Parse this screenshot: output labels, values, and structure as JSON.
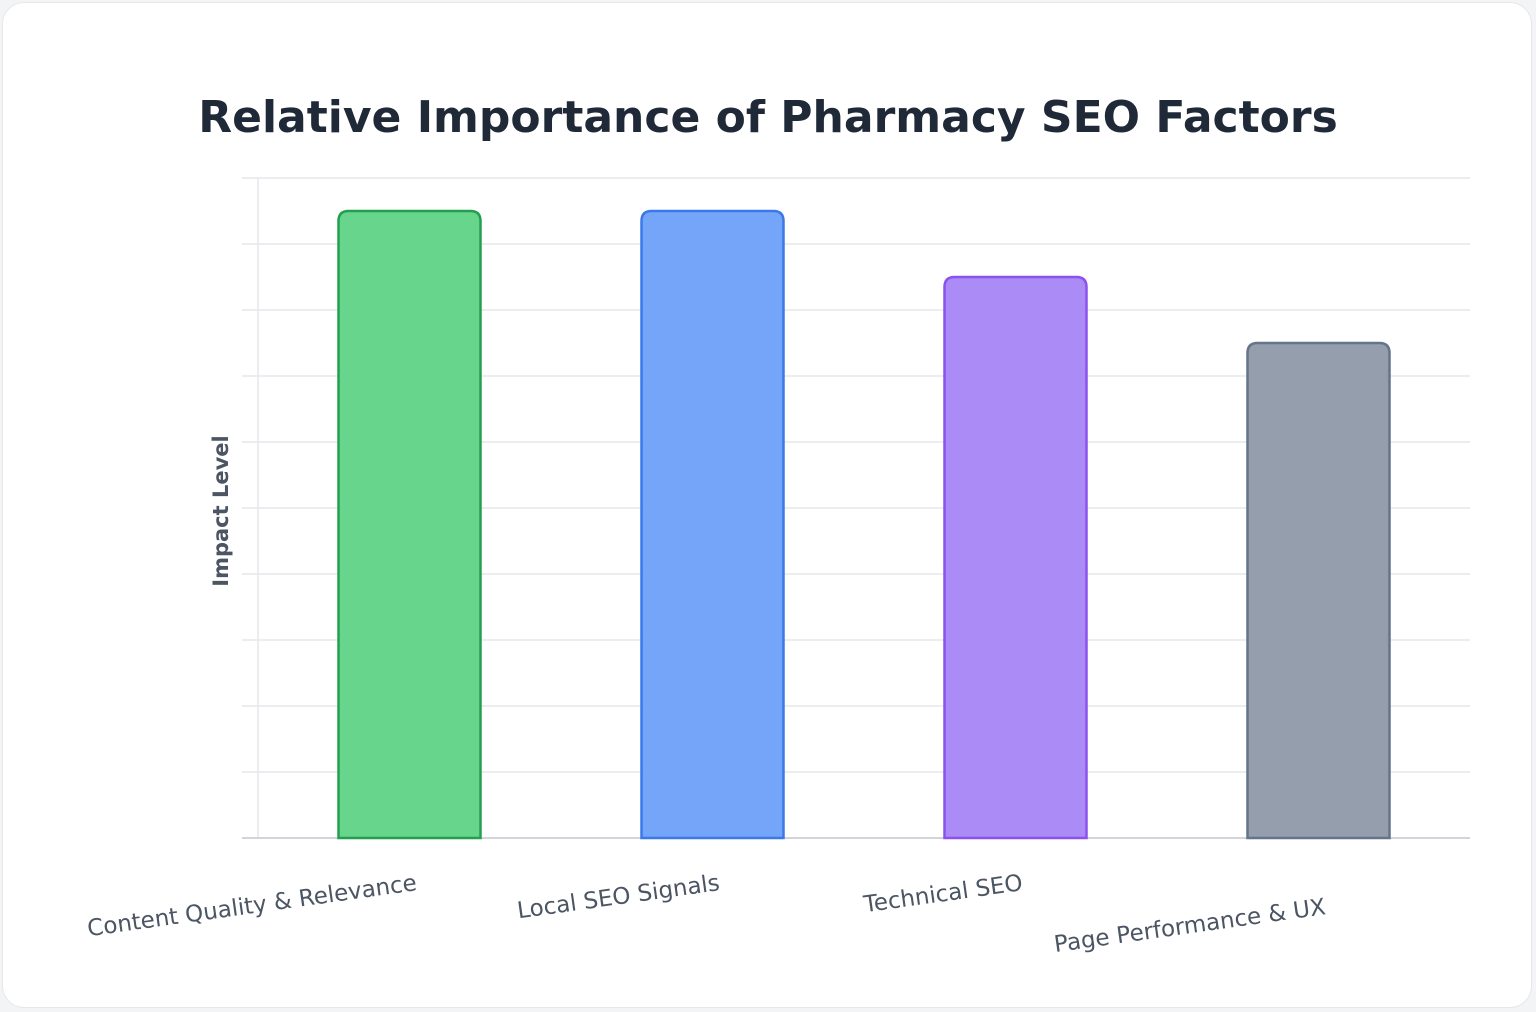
{
  "chart_data": {
    "type": "bar",
    "title": "Relative Importance of Pharmacy SEO Factors",
    "xlabel": "",
    "ylabel": "Impact Level",
    "categories": [
      "Content Quality & Relevance",
      "Local SEO Signals",
      "Technical SEO",
      "Page Performance & UX"
    ],
    "values": [
      9.5,
      9.5,
      8.5,
      7.5
    ],
    "ylim": [
      0,
      10
    ],
    "grid": true,
    "legend": "none",
    "colors": {
      "fills": [
        "#68d58c",
        "#75a5f8",
        "#ab8bf6",
        "#949eac"
      ],
      "strokes": [
        "#22a04f",
        "#3b79e8",
        "#8b52ee",
        "#64748b"
      ],
      "grid": "#e5e7eb",
      "axis": "#d1d5db"
    }
  }
}
